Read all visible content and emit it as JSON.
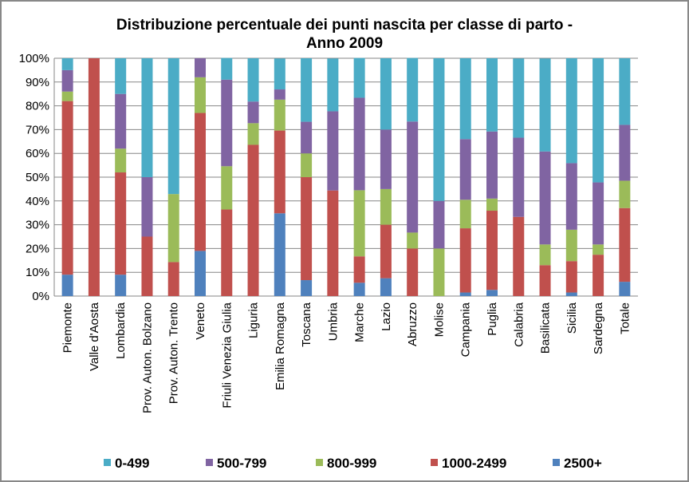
{
  "chart_data": {
    "type": "stacked-bar",
    "title": [
      "Distribuzione percentuale dei punti nascita per classe di parto -",
      "Anno 2009"
    ],
    "categories": [
      "Piemonte",
      "Valle d'Aosta",
      "Lombardia",
      "Prov. Auton. Bolzano",
      "Prov. Auton. Trento",
      "Veneto",
      "Friuli Venezia Giulia",
      "Liguria",
      "Emilia Romagna",
      "Toscana",
      "Umbria",
      "Marche",
      "Lazio",
      "Abruzzo",
      "Molise",
      "Campania",
      "Puglia",
      "Calabria",
      "Basilicata",
      "Sicilia",
      "Sardegna",
      "Totale"
    ],
    "series": [
      {
        "name": "0-499",
        "color": "#4bacc6",
        "values": [
          5,
          0,
          15,
          50,
          57.1,
          0,
          9.1,
          18.2,
          13,
          26.7,
          22.2,
          16.7,
          30,
          26.7,
          60,
          34,
          30.8,
          33.3,
          39.1,
          44.1,
          52.2,
          28
        ]
      },
      {
        "name": "500-799",
        "color": "#8064a2",
        "values": [
          9,
          0,
          23,
          25,
          0,
          8,
          36.4,
          9.1,
          4.3,
          13.3,
          33.3,
          38.9,
          25,
          46.7,
          20,
          25.5,
          28.2,
          33.3,
          39.1,
          28,
          26.1,
          23.5
        ]
      },
      {
        "name": "800-999",
        "color": "#9bbb59",
        "values": [
          4,
          0,
          10,
          0,
          28.6,
          15,
          18.2,
          9.1,
          13,
          10,
          0,
          27.8,
          15,
          6.7,
          20,
          12,
          5.1,
          0,
          8.7,
          13.2,
          4.3,
          11.5
        ]
      },
      {
        "name": "1000-2499",
        "color": "#c0504d",
        "values": [
          73,
          100,
          43,
          25,
          14.3,
          58,
          36.4,
          63.6,
          34.8,
          43.3,
          44.4,
          11.1,
          22.5,
          20,
          0,
          27,
          33.3,
          33.3,
          13,
          13.2,
          17.4,
          31
        ]
      },
      {
        "name": "2500+",
        "color": "#4f81bd",
        "values": [
          9,
          0,
          9,
          0,
          0,
          19,
          0,
          0,
          34.8,
          6.7,
          0,
          5.6,
          7.5,
          0,
          0,
          1.5,
          2.6,
          0,
          0,
          1.5,
          0,
          6
        ]
      }
    ],
    "ylim": [
      0,
      100
    ],
    "yticks": [
      {
        "value": 0,
        "label": "0%"
      },
      {
        "value": 10,
        "label": "10%"
      },
      {
        "value": 20,
        "label": "20%"
      },
      {
        "value": 30,
        "label": "30%"
      },
      {
        "value": 40,
        "label": "40%"
      },
      {
        "value": 50,
        "label": "50%"
      },
      {
        "value": 60,
        "label": "60%"
      },
      {
        "value": 70,
        "label": "70%"
      },
      {
        "value": 80,
        "label": "80%"
      },
      {
        "value": 90,
        "label": "90%"
      },
      {
        "value": 100,
        "label": "100%"
      }
    ],
    "grid": true,
    "legend": "bottom"
  }
}
